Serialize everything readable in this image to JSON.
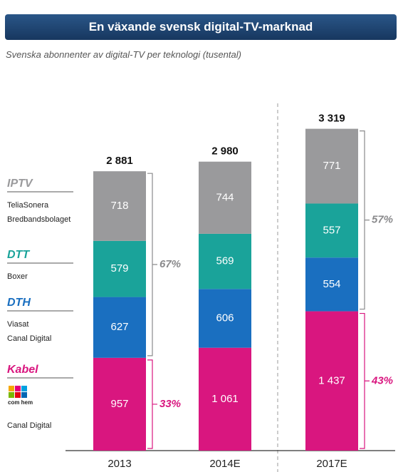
{
  "chart_data": {
    "type": "stacked_bar",
    "title": "En växande svensk digital-TV-marknad",
    "subtitle": "Svenska abonnenter av digital-TV per teknologi (tusental)",
    "categories": [
      "2013",
      "2014E",
      "2017E"
    ],
    "ylim": [
      0,
      3500
    ],
    "series": [
      {
        "name": "Kabel",
        "color": "#d9167f",
        "providers": [
          "Canal Digital"
        ],
        "logo": "com hem",
        "values": [
          957,
          1061,
          1437
        ],
        "value_labels": [
          "957",
          "1 061",
          "1 437"
        ]
      },
      {
        "name": "DTH",
        "color": "#1a6fc0",
        "providers": [
          "Viasat",
          "Canal Digital"
        ],
        "values": [
          627,
          606,
          554
        ],
        "value_labels": [
          "627",
          "606",
          "554"
        ]
      },
      {
        "name": "DTT",
        "color": "#1aa39a",
        "providers": [
          "Boxer"
        ],
        "values": [
          579,
          569,
          557
        ],
        "value_labels": [
          "579",
          "569",
          "557"
        ]
      },
      {
        "name": "IPTV",
        "color": "#9a9a9c",
        "providers": [
          "TeliaSonera",
          "Bredbandsbolaget"
        ],
        "values": [
          718,
          744,
          771
        ],
        "value_labels": [
          "718",
          "744",
          "771"
        ]
      }
    ],
    "totals": {
      "values": [
        2881,
        2980,
        3319
      ],
      "value_labels": [
        "2 881",
        "2 980",
        "3 319"
      ]
    },
    "annotations": [
      "67%",
      "33%",
      "57%",
      "43%"
    ]
  }
}
